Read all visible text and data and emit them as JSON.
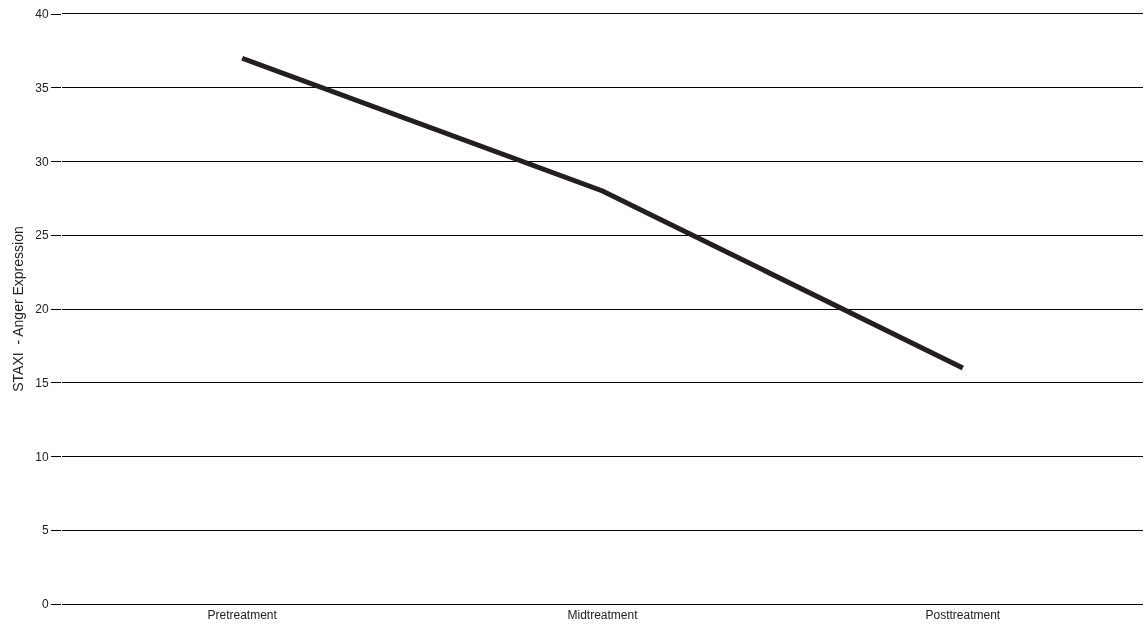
{
  "chart_data": {
    "type": "line",
    "ylabel": "STAXI  - Anger Expression",
    "categories": [
      "Pretreatment",
      "Midtreatment",
      "Posttreatment"
    ],
    "series": [
      {
        "color": "#231f20",
        "values": [
          37,
          28,
          16
        ]
      }
    ],
    "ylim": [
      0,
      40
    ],
    "yticks": [
      0,
      5,
      10,
      15,
      20,
      25,
      30,
      35,
      40
    ],
    "grid": "y",
    "marker": "none",
    "line_style": "solid"
  }
}
